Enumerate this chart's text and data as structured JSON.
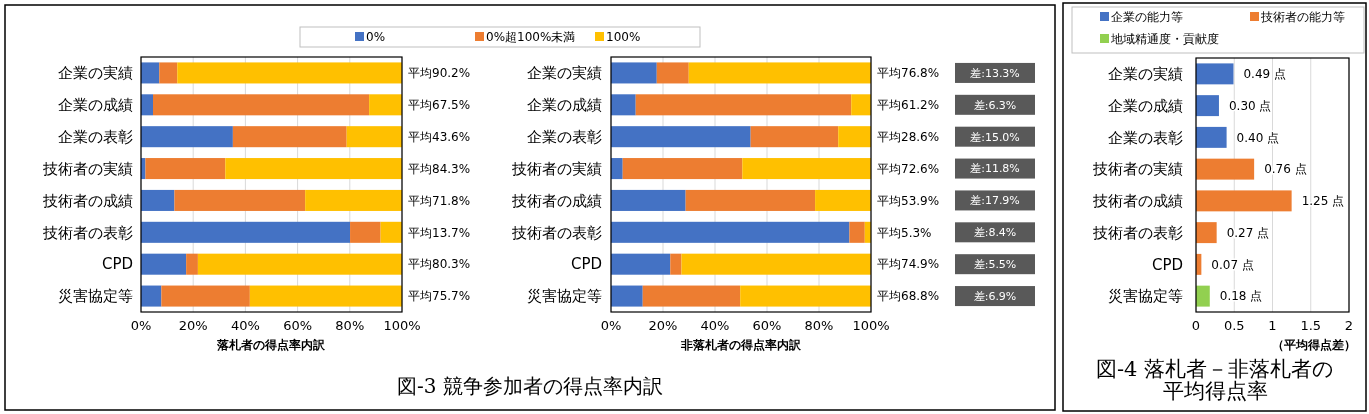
{
  "chart_data": [
    {
      "type": "bar",
      "orientation": "horizontal",
      "stacked": true,
      "categories": [
        "企業の実績",
        "企業の成績",
        "企業の表彰",
        "技術者の実績",
        "技術者の成績",
        "技術者の表彰",
        "CPD",
        "災害協定等"
      ],
      "series": [
        {
          "name": "0%",
          "color": "#4472c4",
          "values": [
            7.0,
            4.6,
            35.2,
            1.7,
            12.8,
            80.1,
            17.3,
            7.8
          ]
        },
        {
          "name": "0%超100%未満",
          "color": "#ed7d31",
          "values": [
            6.9,
            82.8,
            43.6,
            30.6,
            50.1,
            11.7,
            4.5,
            33.9
          ]
        },
        {
          "name": "100%",
          "color": "#ffc000",
          "values": [
            86.1,
            12.6,
            21.2,
            67.7,
            37.1,
            8.2,
            78.2,
            58.3
          ]
        }
      ],
      "totals": [
        "平均90.2%",
        "平均67.5%",
        "平均43.6%",
        "平均84.3%",
        "平均71.8%",
        "平均13.7%",
        "平均80.3%",
        "平均75.7%"
      ],
      "xlim": [
        0,
        100
      ],
      "xticks": [
        {
          "value": 0,
          "label": "0%"
        },
        {
          "value": 20,
          "label": "20%"
        },
        {
          "value": 40,
          "label": "40%"
        },
        {
          "value": 60,
          "label": "60%"
        },
        {
          "value": 80,
          "label": "80%"
        },
        {
          "value": 100,
          "label": "100%"
        }
      ],
      "xlabel": "落札者の得点率内訳",
      "grid": "x",
      "legend": "top",
      "annotations": [
        "図-3 競争参加者の得点率内訳"
      ]
    },
    {
      "type": "bar",
      "orientation": "horizontal",
      "stacked": true,
      "categories": [
        "企業の実績",
        "企業の成績",
        "企業の表彰",
        "技術者の実績",
        "技術者の成績",
        "技術者の表彰",
        "CPD",
        "災害協定等"
      ],
      "series": [
        {
          "color": "#4472c4",
          "values": [
            17.6,
            9.5,
            53.7,
            4.5,
            28.7,
            91.7,
            22.8,
            12.2
          ]
        },
        {
          "color": "#ed7d31",
          "values": [
            12.3,
            82.9,
            33.7,
            46.0,
            49.8,
            5.9,
            4.3,
            37.5
          ]
        },
        {
          "color": "#ffc000",
          "values": [
            70.1,
            7.6,
            12.6,
            49.5,
            21.5,
            2.4,
            72.9,
            50.3
          ]
        }
      ],
      "totals": [
        "平均76.8%",
        "平均61.2%",
        "平均28.6%",
        "平均72.6%",
        "平均53.9%",
        "平均5.3%",
        "平均74.9%",
        "平均68.8%"
      ],
      "xlim": [
        0,
        100
      ],
      "xticks": [
        {
          "value": 0,
          "label": "0%"
        },
        {
          "value": 20,
          "label": "20%"
        },
        {
          "value": 40,
          "label": "40%"
        },
        {
          "value": 60,
          "label": "60%"
        },
        {
          "value": 80,
          "label": "80%"
        },
        {
          "value": 100,
          "label": "100%"
        }
      ],
      "xlabel": "非落札者の得点率内訳",
      "grid": "x",
      "annotations": [
        "差:13.3%",
        "差:6.3%",
        "差:15.0%",
        "差:11.8%",
        "差:17.9%",
        "差:8.4%",
        "差:5.5%",
        "差:6.9%"
      ]
    },
    {
      "type": "bar",
      "orientation": "horizontal",
      "stacked": true,
      "categories": [
        "企業の実績",
        "企業の成績",
        "企業の表彰",
        "技術者の実績",
        "技術者の成績",
        "技術者の表彰",
        "CPD",
        "災害協定等"
      ],
      "series": [
        {
          "name": "企業の能力等",
          "color": "#4472c4",
          "values": [
            0.49,
            0.3,
            0.4,
            null,
            null,
            null,
            null,
            null
          ],
          "value_labels": [
            "0.49 点",
            "0.30 点",
            "0.40 点",
            null,
            null,
            null,
            null,
            null
          ]
        },
        {
          "name": "技術者の能力等",
          "color": "#ed7d31",
          "values": [
            null,
            null,
            null,
            0.76,
            1.25,
            0.27,
            0.07,
            null
          ],
          "value_labels": [
            null,
            null,
            null,
            "0.76 点",
            "1.25 点",
            "0.27 点",
            "0.07 点",
            null
          ]
        },
        {
          "name": "地域精通度・貢献度",
          "color": "#92d050",
          "values": [
            null,
            null,
            null,
            null,
            null,
            null,
            null,
            0.18
          ],
          "value_labels": [
            null,
            null,
            null,
            null,
            null,
            null,
            null,
            "0.18 点"
          ]
        }
      ],
      "xlim": [
        0,
        2
      ],
      "xticks": [
        0,
        {
          "value": 0.5,
          "label": "0.5"
        },
        1,
        {
          "value": 1.5,
          "label": "1.5"
        },
        2
      ],
      "xlabel": "（平均得点差）",
      "grid": "x",
      "legend": "top",
      "title": "図-4 落札者－非落札者の平均得点率"
    }
  ]
}
